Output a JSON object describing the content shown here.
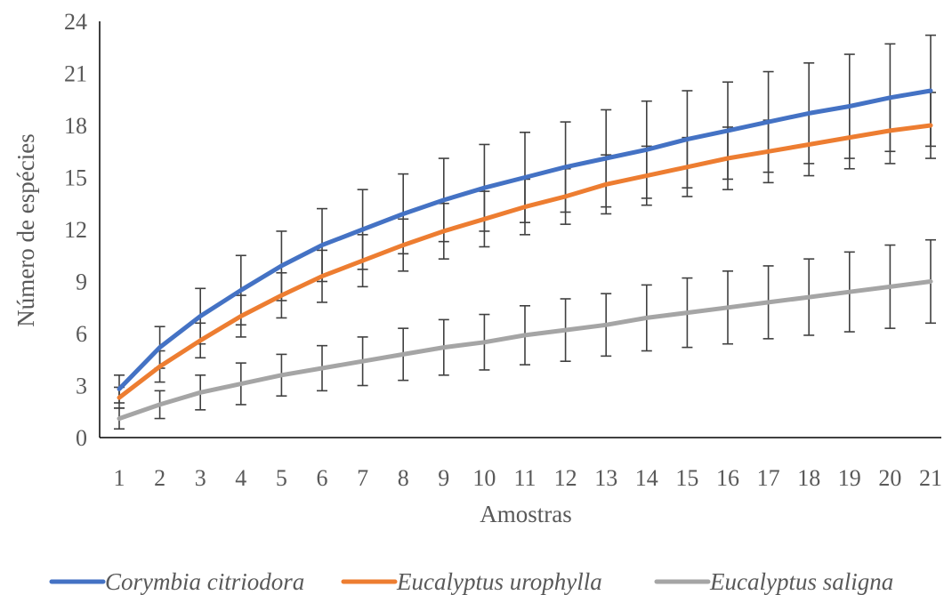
{
  "chart_data": {
    "type": "line",
    "xlabel": "Amostras",
    "ylabel": "Número de espécies",
    "x": [
      1,
      2,
      3,
      4,
      5,
      6,
      7,
      8,
      9,
      10,
      11,
      12,
      13,
      14,
      15,
      16,
      17,
      18,
      19,
      20,
      21
    ],
    "ylim": [
      0,
      24
    ],
    "yticks": [
      0,
      3,
      6,
      9,
      12,
      15,
      18,
      21,
      24
    ],
    "grid": false,
    "legend_position": "bottom",
    "series": [
      {
        "name": "Corymbia citriodora",
        "color": "#4472C4",
        "values": [
          2.8,
          5.2,
          7.0,
          8.5,
          9.9,
          11.1,
          12.0,
          12.9,
          13.7,
          14.4,
          15.0,
          15.6,
          16.1,
          16.6,
          17.2,
          17.7,
          18.2,
          18.7,
          19.1,
          19.6,
          20.0
        ],
        "errors": [
          0.8,
          1.2,
          1.6,
          2.0,
          2.0,
          2.1,
          2.3,
          2.3,
          2.4,
          2.5,
          2.6,
          2.6,
          2.8,
          2.8,
          2.8,
          2.8,
          2.9,
          2.9,
          3.0,
          3.1,
          3.2
        ]
      },
      {
        "name": "Eucalyptus urophylla",
        "color": "#ED7D31",
        "values": [
          2.3,
          4.1,
          5.6,
          7.0,
          8.2,
          9.3,
          10.2,
          11.1,
          11.9,
          12.6,
          13.3,
          13.9,
          14.6,
          15.1,
          15.6,
          16.1,
          16.5,
          16.9,
          17.3,
          17.7,
          18.0
        ],
        "errors": [
          0.6,
          0.9,
          1.0,
          1.2,
          1.3,
          1.5,
          1.5,
          1.5,
          1.6,
          1.6,
          1.6,
          1.6,
          1.7,
          1.7,
          1.7,
          1.8,
          1.8,
          1.8,
          1.8,
          1.9,
          1.9
        ]
      },
      {
        "name": "Eucalyptus saligna",
        "color": "#A5A5A5",
        "values": [
          1.1,
          1.9,
          2.6,
          3.1,
          3.6,
          4.0,
          4.4,
          4.8,
          5.2,
          5.5,
          5.9,
          6.2,
          6.5,
          6.9,
          7.2,
          7.5,
          7.8,
          8.1,
          8.4,
          8.7,
          9.0
        ],
        "errors": [
          0.6,
          0.8,
          1.0,
          1.2,
          1.2,
          1.3,
          1.4,
          1.5,
          1.6,
          1.6,
          1.7,
          1.8,
          1.8,
          1.9,
          2.0,
          2.1,
          2.1,
          2.2,
          2.3,
          2.4,
          2.4
        ]
      }
    ]
  }
}
